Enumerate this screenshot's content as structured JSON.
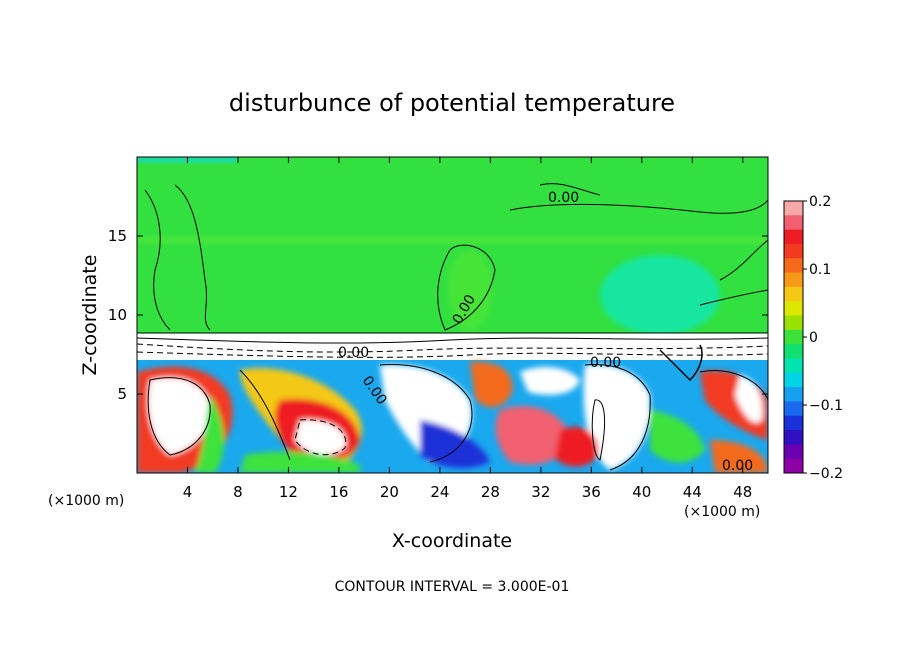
{
  "chart_data": {
    "type": "heatmap",
    "title": "disturbunce of potential temperature",
    "xlabel": "X-coordinate",
    "ylabel": "Z-coordinate",
    "x_unit_label": "(×1000 m)",
    "xlim": [
      0,
      50
    ],
    "ylim": [
      0,
      20
    ],
    "x_ticks": [
      4,
      8,
      12,
      16,
      20,
      24,
      28,
      32,
      36,
      40,
      44,
      48
    ],
    "y_ticks": [
      5,
      10,
      15
    ],
    "colorbar": {
      "ticks": [
        0.2,
        0.1,
        0,
        -0.1,
        -0.2
      ],
      "tick_labels": [
        "0.2",
        "0.1",
        "0",
        "−0.1",
        "−0.2"
      ],
      "range": [
        -0.2,
        0.2
      ],
      "colors_top_to_bottom": [
        "#f7a8a8",
        "#f06070",
        "#ee1c24",
        "#f23a20",
        "#f46a1a",
        "#f89a18",
        "#f4c814",
        "#dce800",
        "#9ae000",
        "#3ce23c",
        "#10e070",
        "#00e4b0",
        "#00d4e6",
        "#18a0f0",
        "#1a6af0",
        "#1a30d8",
        "#3010c0",
        "#6a00b0",
        "#9000a8"
      ]
    },
    "contour_labels": [
      "0.00",
      "0.00",
      "0.00",
      "0.00",
      "0.00",
      "0.00"
    ],
    "footer": "CONTOUR INTERVAL = 3.000E-01"
  }
}
